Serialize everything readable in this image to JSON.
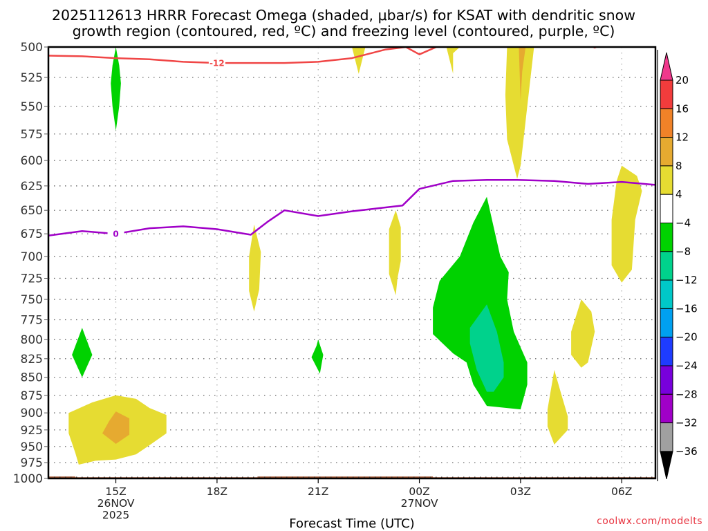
{
  "chart_data": {
    "type": "heatmap",
    "title_lines": [
      "2025112613 HRRR Forecast Omega (shaded, μbar/s) for KSAT with dendritic snow",
      "growth region (contoured, red, ºC) and freezing level (contoured, purple, ºC)"
    ],
    "xlabel": "Forecast Time (UTC)",
    "ylabel": "",
    "credit": "coolwx.com/modelts",
    "x_range_hours": [
      13,
      31
    ],
    "x_ticks": [
      {
        "hour": 15,
        "lines": [
          "15Z",
          "26NOV",
          "2025"
        ]
      },
      {
        "hour": 18,
        "lines": [
          "18Z"
        ]
      },
      {
        "hour": 21,
        "lines": [
          "21Z"
        ]
      },
      {
        "hour": 24,
        "lines": [
          "00Z",
          "27NOV"
        ]
      },
      {
        "hour": 27,
        "lines": [
          "03Z"
        ]
      },
      {
        "hour": 30,
        "lines": [
          "06Z"
        ]
      }
    ],
    "y_range_mb": [
      500,
      1000
    ],
    "y_scale": "log-pressure",
    "y_ticks": [
      500,
      525,
      550,
      575,
      600,
      625,
      650,
      675,
      700,
      725,
      750,
      775,
      800,
      825,
      850,
      875,
      900,
      925,
      950,
      975,
      1000
    ],
    "grid": true,
    "colorbar": {
      "position": "right",
      "units": "μbar/s",
      "levels": [
        20,
        16,
        12,
        8,
        4,
        -4,
        -8,
        -12,
        -16,
        -20,
        -24,
        -28,
        -32,
        -36
      ],
      "colors": [
        "#f0388c",
        "#f23c3c",
        "#f08228",
        "#e6aa30",
        "#e6dc32",
        "#ffffff",
        "#00d200",
        "#00d28c",
        "#00c8c8",
        "#00a0f0",
        "#1e3cff",
        "#7800dc",
        "#a000c8",
        "#a0a0a0",
        "#000000"
      ],
      "extend": "both"
    },
    "omega_regions": [
      {
        "label": "green 26NOV 15Z upper",
        "level": -4,
        "color": "#00d200",
        "points": [
          [
            15.0,
            500
          ],
          [
            15.1,
            515
          ],
          [
            15.15,
            530
          ],
          [
            15.1,
            550
          ],
          [
            15.0,
            572
          ],
          [
            14.9,
            550
          ],
          [
            14.85,
            530
          ],
          [
            14.9,
            515
          ]
        ]
      },
      {
        "label": "green 14Z mid",
        "level": -4,
        "color": "#00d200",
        "points": [
          [
            14.0,
            785
          ],
          [
            14.3,
            820
          ],
          [
            14.0,
            850
          ],
          [
            13.7,
            820
          ]
        ]
      },
      {
        "label": "yellow 15Z low",
        "level": 4,
        "color": "#e6dc32",
        "points": [
          [
            13.6,
            900
          ],
          [
            14.3,
            885
          ],
          [
            15.0,
            875
          ],
          [
            15.6,
            880
          ],
          [
            16.0,
            893
          ],
          [
            16.5,
            903
          ],
          [
            16.5,
            930
          ],
          [
            16.0,
            948
          ],
          [
            15.6,
            962
          ],
          [
            15.0,
            970
          ],
          [
            14.4,
            972
          ],
          [
            13.9,
            978
          ],
          [
            13.8,
            960
          ],
          [
            13.6,
            930
          ]
        ]
      },
      {
        "label": "orange 15Z low",
        "level": 8,
        "color": "#e6aa30",
        "points": [
          [
            15.0,
            898
          ],
          [
            15.4,
            908
          ],
          [
            15.4,
            932
          ],
          [
            15.0,
            946
          ],
          [
            14.6,
            930
          ],
          [
            14.8,
            912
          ]
        ]
      },
      {
        "label": "yellow 19Z",
        "level": 4,
        "color": "#e6dc32",
        "points": [
          [
            19.1,
            665
          ],
          [
            19.3,
            695
          ],
          [
            19.25,
            738
          ],
          [
            19.1,
            765
          ],
          [
            18.95,
            740
          ],
          [
            18.95,
            700
          ]
        ]
      },
      {
        "label": "green 21Z",
        "level": -4,
        "color": "#00d200",
        "points": [
          [
            21.0,
            800
          ],
          [
            21.15,
            820
          ],
          [
            21.05,
            845
          ],
          [
            20.8,
            823
          ],
          [
            20.95,
            808
          ]
        ]
      },
      {
        "label": "yellow 22Z top",
        "level": 4,
        "color": "#e6dc32",
        "points": [
          [
            22.0,
            500
          ],
          [
            22.4,
            500
          ],
          [
            22.2,
            522
          ]
        ]
      },
      {
        "label": "yellow 23Z",
        "level": 4,
        "color": "#e6dc32",
        "points": [
          [
            23.3,
            650
          ],
          [
            23.45,
            668
          ],
          [
            23.45,
            705
          ],
          [
            23.35,
            725
          ],
          [
            23.3,
            745
          ],
          [
            23.1,
            720
          ],
          [
            23.1,
            670
          ]
        ]
      },
      {
        "label": "yellow 00Z top",
        "level": 4,
        "color": "#e6dc32",
        "points": [
          [
            24.8,
            500
          ],
          [
            25.2,
            500
          ],
          [
            25.0,
            505
          ],
          [
            25.0,
            522
          ]
        ]
      },
      {
        "label": "green 01-03Z",
        "level": -4,
        "color": "#00d200",
        "points": [
          [
            26.0,
            636
          ],
          [
            26.4,
            700
          ],
          [
            26.65,
            718
          ],
          [
            26.6,
            750
          ],
          [
            26.8,
            790
          ],
          [
            27.2,
            830
          ],
          [
            27.2,
            860
          ],
          [
            27.0,
            895
          ],
          [
            26.0,
            890
          ],
          [
            25.6,
            860
          ],
          [
            25.4,
            830
          ],
          [
            25.0,
            818
          ],
          [
            24.4,
            793
          ],
          [
            24.4,
            760
          ],
          [
            24.6,
            728
          ],
          [
            25.2,
            700
          ],
          [
            25.6,
            663
          ]
        ]
      },
      {
        "label": "teal 02Z",
        "level": -8,
        "color": "#00d28c",
        "points": [
          [
            26.0,
            756
          ],
          [
            26.3,
            790
          ],
          [
            26.5,
            830
          ],
          [
            26.5,
            850
          ],
          [
            26.2,
            870
          ],
          [
            26.0,
            870
          ],
          [
            25.7,
            840
          ],
          [
            25.5,
            805
          ],
          [
            25.5,
            785
          ]
        ]
      },
      {
        "label": "yellow 03Z upper",
        "level": 4,
        "color": "#e6dc32",
        "points": [
          [
            26.6,
            500
          ],
          [
            27.4,
            500
          ],
          [
            27.2,
            550
          ],
          [
            27.0,
            605
          ],
          [
            26.9,
            618
          ],
          [
            26.6,
            580
          ],
          [
            26.55,
            540
          ]
        ]
      },
      {
        "label": "orange 03Z top",
        "level": 8,
        "color": "#e6aa30",
        "points": [
          [
            26.95,
            500
          ],
          [
            27.15,
            500
          ],
          [
            27.05,
            520
          ],
          [
            27.0,
            545
          ]
        ]
      },
      {
        "label": "yellow 04Z",
        "level": 4,
        "color": "#e6dc32",
        "points": [
          [
            28.0,
            840
          ],
          [
            28.2,
            872
          ],
          [
            28.4,
            905
          ],
          [
            28.4,
            925
          ],
          [
            28.0,
            947
          ],
          [
            27.8,
            920
          ],
          [
            27.8,
            895
          ]
        ]
      },
      {
        "label": "yellow 05Z",
        "level": 4,
        "color": "#e6dc32",
        "points": [
          [
            28.8,
            750
          ],
          [
            29.1,
            765
          ],
          [
            29.2,
            790
          ],
          [
            29.0,
            830
          ],
          [
            28.8,
            837
          ],
          [
            28.5,
            820
          ],
          [
            28.5,
            790
          ]
        ]
      },
      {
        "label": "yellow 06Z",
        "level": 4,
        "color": "#e6dc32",
        "points": [
          [
            30.0,
            605
          ],
          [
            30.45,
            615
          ],
          [
            30.6,
            630
          ],
          [
            30.4,
            660
          ],
          [
            30.3,
            715
          ],
          [
            30.0,
            730
          ],
          [
            29.7,
            710
          ],
          [
            29.7,
            660
          ],
          [
            29.85,
            620
          ]
        ]
      }
    ],
    "contours": [
      {
        "name": "dendritic growth -12C",
        "color": "#f04646",
        "label": "-12",
        "label_at_hour": 18.0,
        "points": [
          [
            13.0,
            507
          ],
          [
            14.0,
            507.5
          ],
          [
            15.0,
            509
          ],
          [
            16.0,
            510
          ],
          [
            17.0,
            512
          ],
          [
            18.0,
            513
          ],
          [
            19.0,
            513
          ],
          [
            20.0,
            513
          ],
          [
            21.0,
            512
          ],
          [
            22.0,
            509
          ],
          [
            23.0,
            502
          ],
          [
            23.6,
            500
          ],
          [
            24.0,
            506
          ],
          [
            24.5,
            500
          ],
          [
            25.0,
            496
          ]
        ]
      },
      {
        "name": "dendritic growth -12C top-right",
        "color": "#f04646",
        "label": "",
        "label_at_hour": null,
        "points": [
          [
            29.0,
            498
          ],
          [
            29.2,
            500.5
          ],
          [
            29.4,
            498
          ]
        ]
      },
      {
        "name": "freezing level 0C",
        "color": "#a000c8",
        "label": "0",
        "label_at_hour": 15.0,
        "points": [
          [
            13.0,
            677
          ],
          [
            14.0,
            672
          ],
          [
            15.0,
            675
          ],
          [
            16.0,
            669
          ],
          [
            17.0,
            667
          ],
          [
            18.0,
            670
          ],
          [
            19.0,
            676
          ],
          [
            19.5,
            662
          ],
          [
            20.0,
            650
          ],
          [
            21.0,
            656
          ],
          [
            22.0,
            651
          ],
          [
            23.0,
            647
          ],
          [
            23.5,
            645
          ],
          [
            24.0,
            628
          ],
          [
            25.0,
            620
          ],
          [
            26.0,
            619
          ],
          [
            26.9,
            619
          ],
          [
            28.0,
            620
          ],
          [
            29.0,
            623
          ],
          [
            30.0,
            621
          ],
          [
            31.0,
            624
          ]
        ]
      }
    ],
    "terrain": {
      "color": "#a0522d",
      "surface_points": [
        [
          13.0,
          997
        ],
        [
          13.8,
          997
        ],
        [
          13.8,
          998
        ],
        [
          19.2,
          998
        ],
        [
          19.2,
          997
        ],
        [
          24.4,
          997
        ],
        [
          24.4,
          998
        ],
        [
          31.0,
          998
        ]
      ]
    }
  }
}
